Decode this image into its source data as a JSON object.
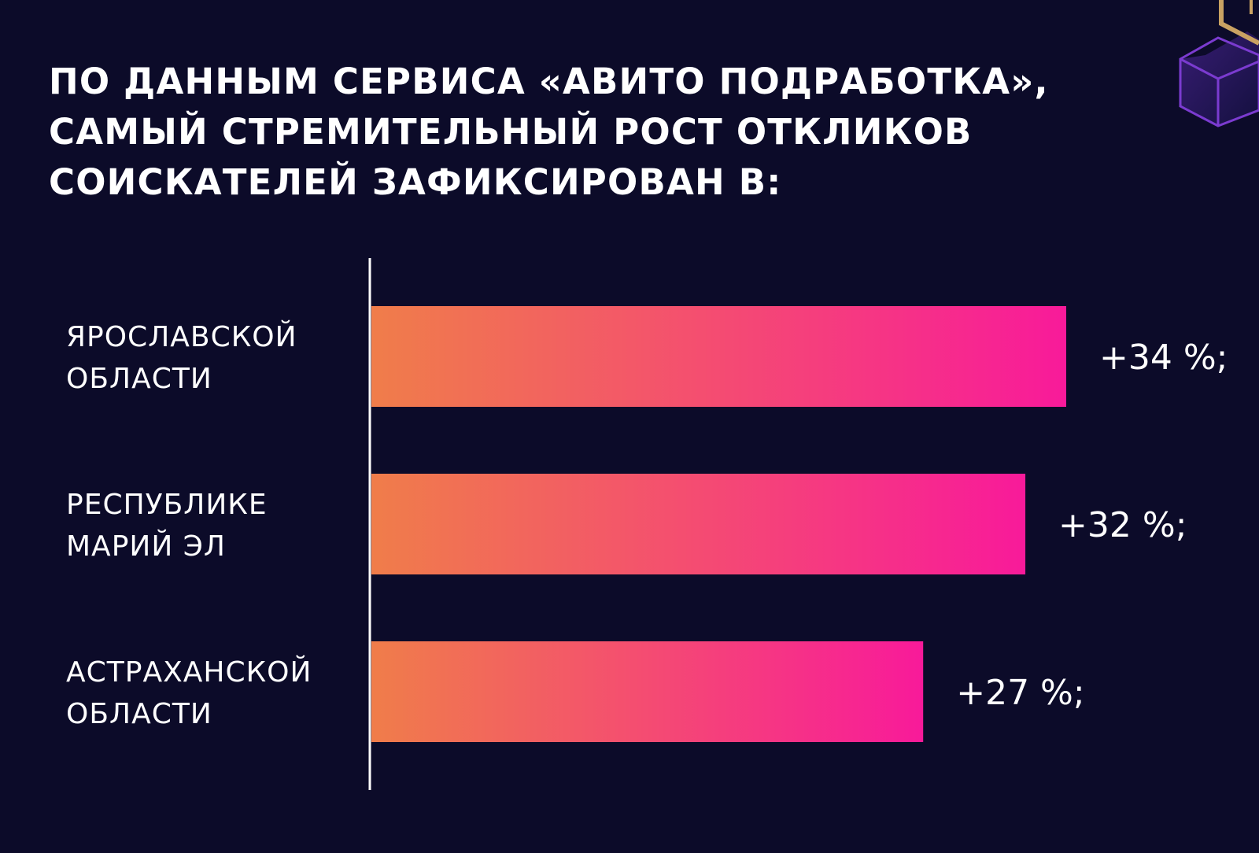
{
  "title_lines": [
    "ПО ДАННЫМ СЕРВИСА «АВИТО ПОДРАБОТКА»,",
    "САМЫЙ СТРЕМИТЕЛЬНЫЙ РОСТ ОТКЛИКОВ",
    "СОИСКАТЕЛЕЙ ЗАФИКСИРОВАН В:"
  ],
  "colors": {
    "background": "#0c0b29",
    "bar_start": "#f07d4a",
    "bar_end": "#f81a9a",
    "axis": "#ffffff",
    "deco_purple": "#7b3bd0",
    "deco_gold": "#c9a262"
  },
  "decoration": {
    "icon": "cube-icon"
  },
  "chart_data": {
    "type": "bar",
    "orientation": "horizontal",
    "title": "ПО ДАННЫМ СЕРВИСА «АВИТО ПОДРАБОТКА», САМЫЙ СТРЕМИТЕЛЬНЫЙ РОСТ ОТКЛИКОВ СОИСКАТЕЛЕЙ ЗАФИКСИРОВАН В:",
    "categories": [
      [
        "ЯРОСЛАВСКОЙ",
        "ОБЛАСТИ"
      ],
      [
        "РЕСПУБЛИКЕ",
        "МАРИЙ ЭЛ"
      ],
      [
        "АСТРАХАНСКОЙ",
        "ОБЛАСТИ"
      ]
    ],
    "values": [
      34,
      32,
      27
    ],
    "value_labels": [
      "+34 %;",
      "+32 %;",
      "+27 %;"
    ],
    "unit": "%",
    "xlim": [
      0,
      34
    ],
    "grid": false,
    "legend": "none"
  }
}
